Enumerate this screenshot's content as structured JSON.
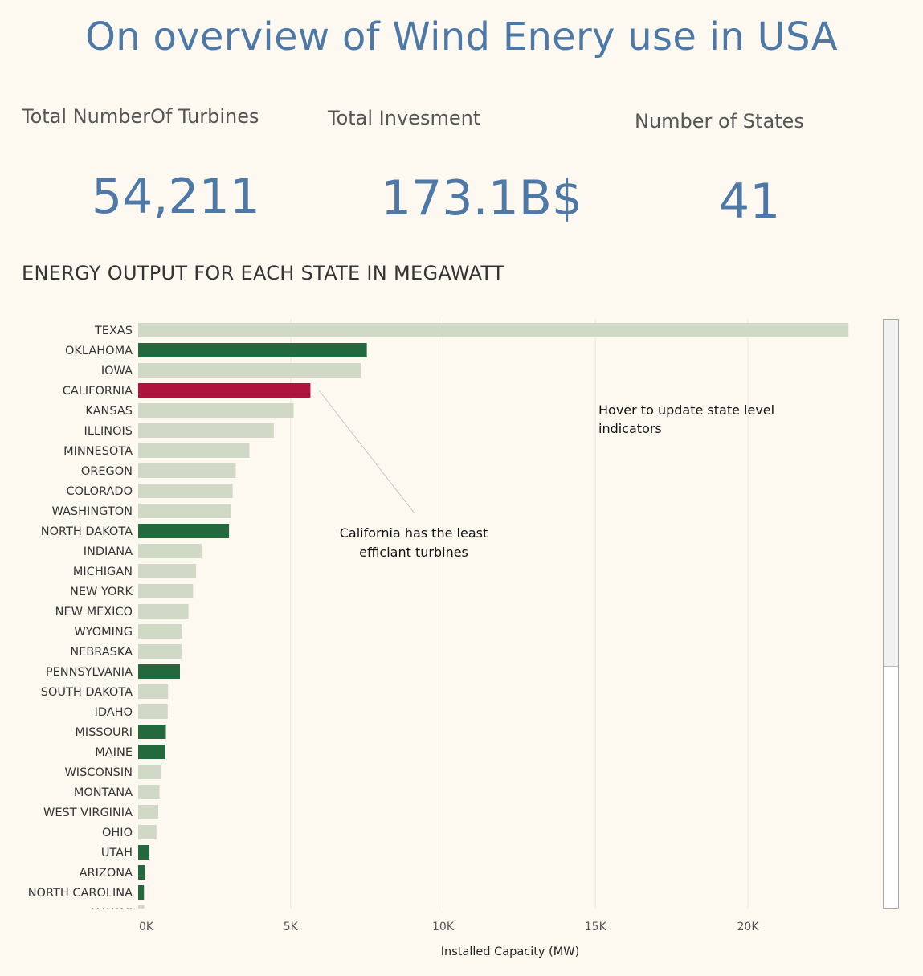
{
  "title": "On overview of Wind Enery use in USA",
  "kpis": {
    "turbines": {
      "label": "Total NumberOf Turbines",
      "value": "54,211"
    },
    "investment": {
      "label": "Total Invesment",
      "value": "173.1B$"
    },
    "states": {
      "label": "Number of States",
      "value": "41"
    }
  },
  "section_title": "ENERGY OUTPUT FOR EACH STATE IN MEGAWATT",
  "annotations": {
    "hover_line1": "Hover to update state level",
    "hover_line2": "indicators",
    "california_line1": "California has the least",
    "california_line2": "efficiant turbines"
  },
  "colors": {
    "default": "#d0d9c6",
    "highlight_green": "#24693e",
    "highlight_red": "#b0143e",
    "accent": "#4e79a7"
  },
  "chart_data": {
    "type": "bar",
    "orientation": "horizontal",
    "xlabel": "Installed Capacity (MW)",
    "xlim": [
      0,
      24500
    ],
    "xticks": [
      0,
      5000,
      10000,
      15000,
      20000
    ],
    "xtick_labels": [
      "0K",
      "5K",
      "10K",
      "15K",
      "20K"
    ],
    "grid": "vertical",
    "categories": [
      "TEXAS",
      "OKLAHOMA",
      "IOWA",
      "CALIFORNIA",
      "KANSAS",
      "ILLINOIS",
      "MINNESOTA",
      "OREGON",
      "COLORADO",
      "WASHINGTON",
      "NORTH DAKOTA",
      "INDIANA",
      "MICHIGAN",
      "NEW YORK",
      "NEW MEXICO",
      "WYOMING",
      "NEBRASKA",
      "PENNSYLVANIA",
      "SOUTH DAKOTA",
      "IDAHO",
      "MISSOURI",
      "MAINE",
      "WISCONSIN",
      "MONTANA",
      "WEST VIRGINIA",
      "OHIO",
      "UTAH",
      "ARIZONA",
      "NORTH CAROLINA",
      "HAWAII"
    ],
    "values": [
      23300,
      7500,
      7300,
      5650,
      5100,
      4450,
      3650,
      3200,
      3100,
      3050,
      2980,
      2080,
      1900,
      1800,
      1650,
      1450,
      1420,
      1370,
      980,
      970,
      910,
      890,
      740,
      700,
      660,
      600,
      370,
      230,
      190,
      200
    ],
    "highlight": [
      "none",
      "green",
      "none",
      "red",
      "none",
      "none",
      "none",
      "none",
      "none",
      "none",
      "green",
      "none",
      "none",
      "none",
      "none",
      "none",
      "none",
      "green",
      "none",
      "none",
      "green",
      "green",
      "none",
      "none",
      "none",
      "none",
      "green",
      "green",
      "green",
      "none"
    ]
  }
}
